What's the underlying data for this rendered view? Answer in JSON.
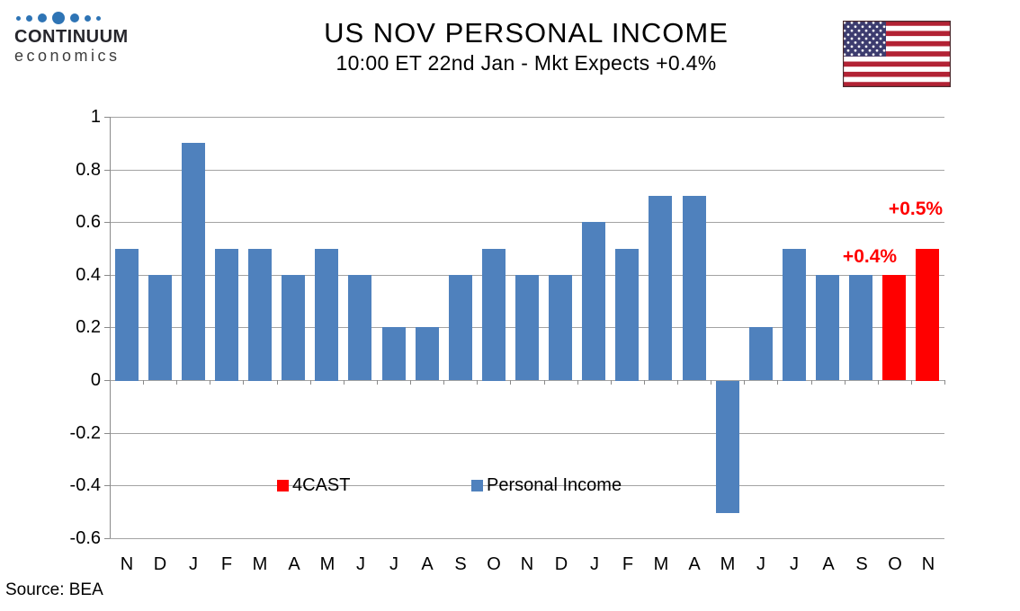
{
  "logo": {
    "line1": "CONTINUUM",
    "line2": "economics",
    "dot_color": "#2E74B5"
  },
  "header": {
    "title": "US NOV PERSONAL INCOME",
    "subtitle": "10:00 ET 22nd Jan - Mkt Expects +0.4%"
  },
  "chart_data": {
    "type": "bar",
    "title": "US NOV PERSONAL INCOME",
    "categories": [
      "N",
      "D",
      "J",
      "F",
      "M",
      "A",
      "M",
      "J",
      "J",
      "A",
      "S",
      "O",
      "N",
      "D",
      "J",
      "F",
      "M",
      "A",
      "M",
      "J",
      "J",
      "A",
      "S",
      "O",
      "N"
    ],
    "series": [
      {
        "name": "Personal Income",
        "color": "#4F81BD",
        "values": [
          0.5,
          0.4,
          0.9,
          0.5,
          0.5,
          0.4,
          0.5,
          0.4,
          0.2,
          0.2,
          0.4,
          0.5,
          0.4,
          0.4,
          0.6,
          0.5,
          0.7,
          0.7,
          -0.5,
          0.2,
          0.5,
          0.4,
          0.4,
          null,
          null
        ]
      },
      {
        "name": "4CAST",
        "color": "#FF0000",
        "values": [
          null,
          null,
          null,
          null,
          null,
          null,
          null,
          null,
          null,
          null,
          null,
          null,
          null,
          null,
          null,
          null,
          null,
          null,
          null,
          null,
          null,
          null,
          null,
          0.4,
          0.5
        ]
      }
    ],
    "annotations": [
      {
        "text": "+0.4%",
        "color": "#FF0000",
        "bar_index": 23
      },
      {
        "text": "+0.5%",
        "color": "#FF0000",
        "bar_index": 24
      }
    ],
    "y_ticks": [
      "1",
      "0.8",
      "0.6",
      "0.4",
      "0.2",
      "0",
      "-0.2",
      "-0.4",
      "-0.6"
    ],
    "ylim": [
      -0.6,
      1.0
    ],
    "xlabel": "",
    "ylabel": "",
    "grid": true,
    "legend": {
      "position": "inside-bottom",
      "entries": [
        {
          "label": "4CAST",
          "color": "#FF0000"
        },
        {
          "label": "Personal Income",
          "color": "#4F81BD"
        }
      ]
    }
  },
  "footer": {
    "source": "Source: BEA"
  }
}
